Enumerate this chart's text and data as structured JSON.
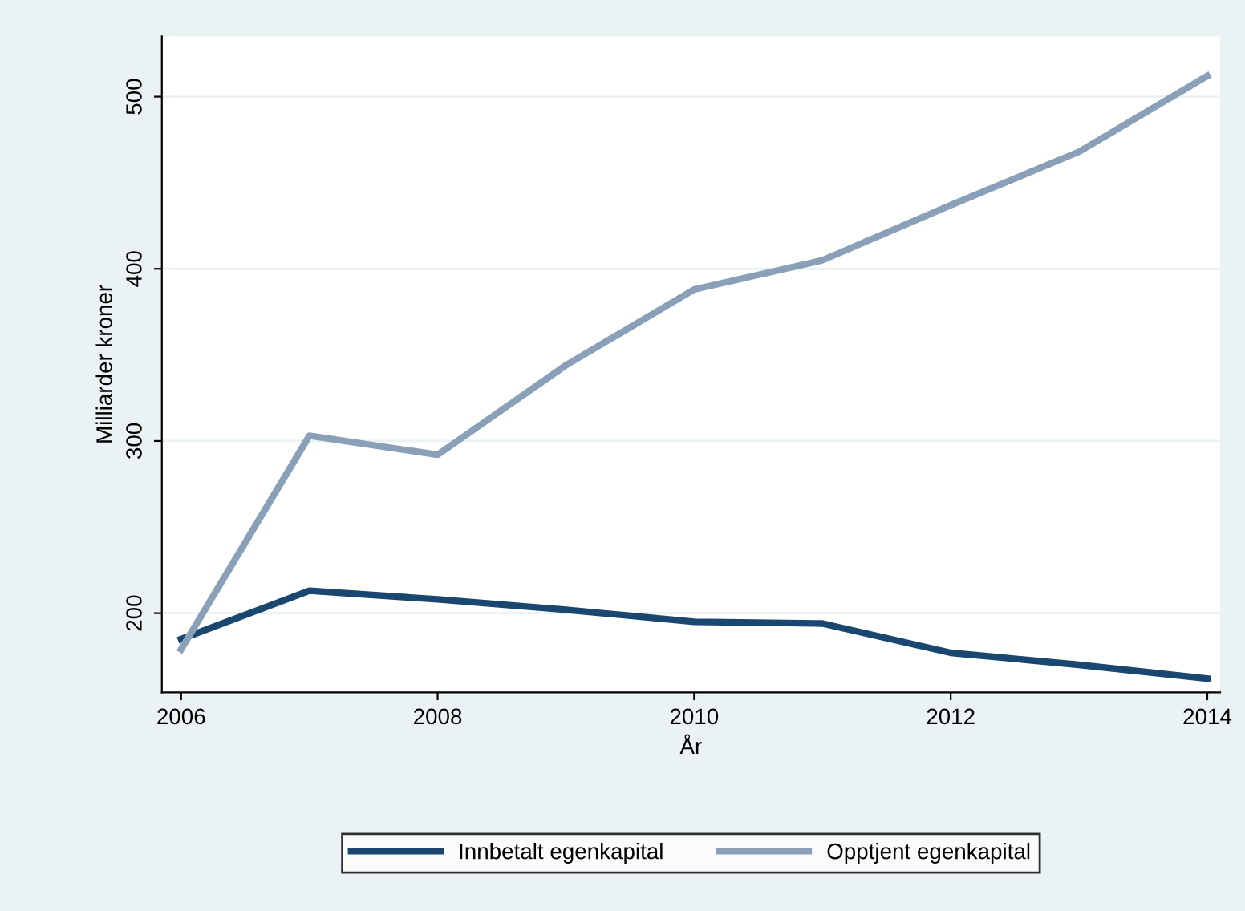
{
  "chart_data": {
    "type": "line",
    "xlabel": "År",
    "ylabel": "Milliarder kroner",
    "x": [
      2006,
      2007,
      2008,
      2009,
      2010,
      2011,
      2012,
      2013,
      2014
    ],
    "series": [
      {
        "name": "Innbetalt egenkapital",
        "color": "#1a476f",
        "values": [
          185,
          213,
          208,
          202,
          195,
          194,
          177,
          170,
          162
        ]
      },
      {
        "name": "Opptjent egenkapital",
        "color": "#8aa0b8",
        "values": [
          179,
          303,
          292,
          344,
          388,
          405,
          437,
          468,
          512
        ]
      }
    ],
    "xlim": [
      2005.85,
      2014.1
    ],
    "ylim": [
      154,
      535
    ],
    "xticks": [
      2006,
      2008,
      2010,
      2012,
      2014
    ],
    "yticks": [
      200,
      300,
      400,
      500
    ],
    "grid": "y",
    "legend": "bottom",
    "marker": "none",
    "line_style": "solid"
  }
}
